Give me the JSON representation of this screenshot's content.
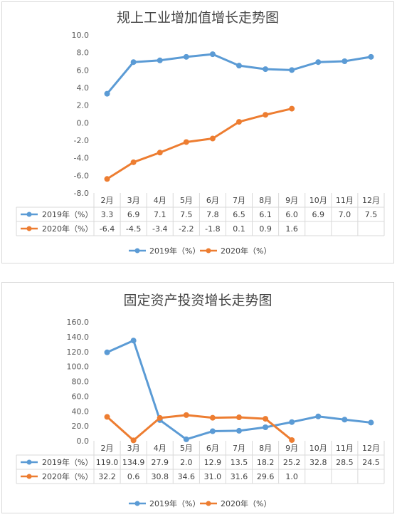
{
  "chart_data": [
    {
      "type": "line",
      "title": "规上工业增加值增长走势图",
      "categories": [
        "2月",
        "3月",
        "4月",
        "5月",
        "6月",
        "7月",
        "8月",
        "9月",
        "10月",
        "11月",
        "12月"
      ],
      "series": [
        {
          "name": "2019年（%）",
          "color": "#5b9bd5",
          "values": [
            3.3,
            6.9,
            7.1,
            7.5,
            7.8,
            6.5,
            6.1,
            6.0,
            6.9,
            7.0,
            7.5
          ]
        },
        {
          "name": "2020年（%）",
          "color": "#ed7d31",
          "values": [
            -6.4,
            -4.5,
            -3.4,
            -2.2,
            -1.8,
            0.1,
            0.9,
            1.6,
            null,
            null,
            null
          ]
        }
      ],
      "ylim": [
        -8,
        10
      ],
      "yticks": [
        "10.0",
        "8.0",
        "6.0",
        "4.0",
        "2.0",
        "0.0",
        "-2.0",
        "-4.0",
        "-6.0",
        "-8.0"
      ],
      "table": [
        [
          "3.3",
          "6.9",
          "7.1",
          "7.5",
          "7.8",
          "6.5",
          "6.1",
          "6.0",
          "6.9",
          "7.0",
          "7.5"
        ],
        [
          "-6.4",
          "-4.5",
          "-3.4",
          "-2.2",
          "-1.8",
          "0.1",
          "0.9",
          "1.6",
          "",
          "",
          ""
        ]
      ],
      "legend": "bottom",
      "grid": false
    },
    {
      "type": "line",
      "title": "固定资产投资增长走势图",
      "categories": [
        "2月",
        "3月",
        "4月",
        "5月",
        "6月",
        "7月",
        "8月",
        "9月",
        "10月",
        "11月",
        "12月"
      ],
      "series": [
        {
          "name": "2019年（%）",
          "color": "#5b9bd5",
          "values": [
            119.0,
            134.9,
            27.9,
            2.0,
            12.9,
            13.5,
            18.2,
            25.2,
            32.8,
            28.5,
            24.5
          ]
        },
        {
          "name": "2020年（%）",
          "color": "#ed7d31",
          "values": [
            32.2,
            0.6,
            30.8,
            34.6,
            31.0,
            31.6,
            29.6,
            1.0,
            null,
            null,
            null
          ]
        }
      ],
      "ylim": [
        0,
        160
      ],
      "yticks": [
        "160.0",
        "140.0",
        "120.0",
        "100.0",
        "80.0",
        "60.0",
        "40.0",
        "20.0",
        "0.0"
      ],
      "table": [
        [
          "119.0",
          "134.9",
          "27.9",
          "2.0",
          "12.9",
          "13.5",
          "18.2",
          "25.2",
          "32.8",
          "28.5",
          "24.5"
        ],
        [
          "32.2",
          "0.6",
          "30.8",
          "34.6",
          "31.0",
          "31.6",
          "29.6",
          "1.0",
          "",
          "",
          ""
        ]
      ],
      "legend": "bottom",
      "grid": false
    }
  ]
}
